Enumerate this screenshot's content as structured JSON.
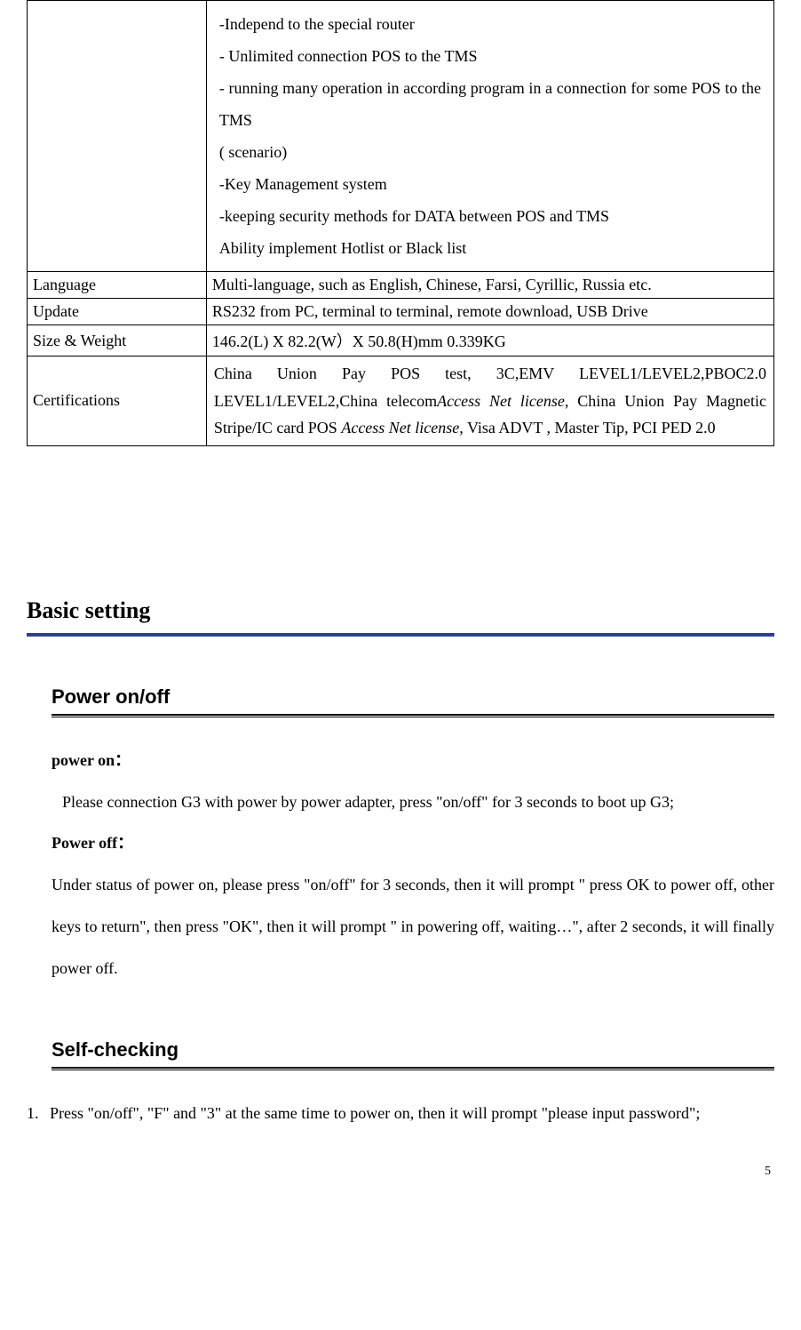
{
  "table": {
    "rows": [
      {
        "label": "",
        "lines": [
          "-Independ to the special router",
          "- Unlimited connection POS to the TMS",
          "- running many  operation in according program in a connection for some POS to the TMS",
          "( scenario)",
          "-Key Management system",
          "-keeping security methods for DATA between POS and TMS",
          "",
          "Ability implement Hotlist or Black list"
        ]
      },
      {
        "label": "Language",
        "content": "Multi-language, such as English, Chinese, Farsi, Cyrillic, Russia etc."
      },
      {
        "label": "Update",
        "content": "RS232 from PC, terminal to terminal, remote download, USB Drive"
      },
      {
        "label": "Size & Weight",
        "content": "146.2(L) X 82.2(W）X 50.8(H)mm    0.339KG"
      },
      {
        "label": "Certifications",
        "content_parts": {
          "p1": "China Union Pay POS test, 3C,EMV LEVEL1/LEVEL2,PBOC2.0 LEVEL1/LEVEL2,China telecom",
          "p2": "Access Net license",
          "p3": ", China Union Pay Magnetic Stripe/IC card POS ",
          "p4": "Access Net license",
          "p5": ", Visa ADVT , Master Tip, PCI PED 2.0"
        }
      }
    ]
  },
  "section": {
    "title": "Basic setting",
    "underline_color": "#2e3e8f"
  },
  "power": {
    "heading": "Power on/off",
    "on_label": "power on：",
    "on_text": "Please connection G3 with power by power adapter, press \"on/off\" for 3 seconds to boot up G3;",
    "off_label": "Power off：",
    "off_text": "Under status of power on, please press \"on/off\" for 3 seconds, then it will prompt \" press OK to power off, other keys to return\", then press \"OK\", then it will prompt \" in powering off, waiting…\", after 2 seconds, it will finally power off."
  },
  "selfcheck": {
    "heading": "Self-checking",
    "item1_num": "1.",
    "item1_text": "Press \"on/off\", \"F\" and \"3\" at the same time to power on, then it will prompt \"please input password\";"
  },
  "page_number": "5"
}
